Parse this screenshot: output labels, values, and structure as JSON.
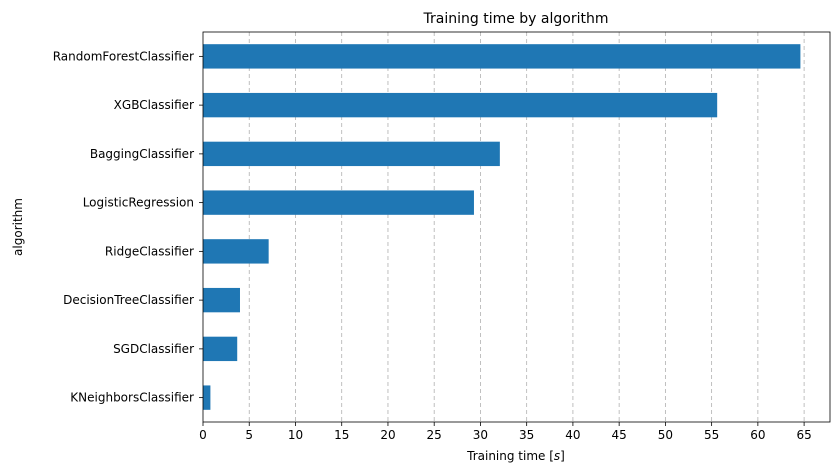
{
  "chart_data": {
    "type": "bar",
    "orientation": "horizontal",
    "title": "Training time by algorithm",
    "xlabel": "Training time [s]",
    "ylabel": "algorithm",
    "categories": [
      "RandomForestClassifier",
      "XGBClassifier",
      "BaggingClassifier",
      "LogisticRegression",
      "RidgeClassifier",
      "DecisionTreeClassifier",
      "SGDClassifier",
      "KNeighborsClassifier"
    ],
    "values": [
      64.6,
      55.6,
      32.1,
      29.3,
      7.1,
      4.0,
      3.7,
      0.8
    ],
    "xlim": [
      0,
      67.8
    ],
    "xticks": [
      0,
      5,
      10,
      15,
      20,
      25,
      30,
      35,
      40,
      45,
      50,
      55,
      60,
      65
    ],
    "grid": "x-dashed",
    "bar_color": "#1f77b4"
  }
}
